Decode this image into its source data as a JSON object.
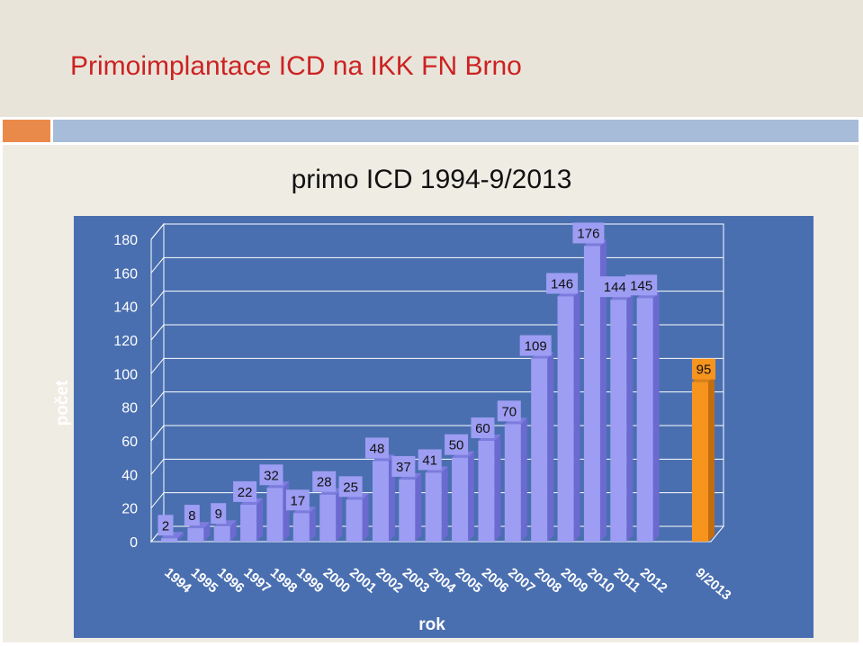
{
  "slide": {
    "title": "Primoimplantace ICD na IKK FN Brno",
    "colors": {
      "title": "#cc2222",
      "band_orange": "#ea8a4a",
      "band_blue": "#a7bcd8",
      "plot_bg": "#4a6fb0"
    }
  },
  "chart_data": {
    "type": "bar",
    "title": "primo ICD 1994-9/2013",
    "xlabel": "rok",
    "ylabel": "počet",
    "ylim": [
      0,
      180
    ],
    "yticks": [
      0,
      20,
      40,
      60,
      80,
      100,
      120,
      140,
      160,
      180
    ],
    "grid": true,
    "categories": [
      "1994",
      "1995",
      "1996",
      "1997",
      "1998",
      "1999",
      "2000",
      "2001",
      "2002",
      "2003",
      "2004",
      "2005",
      "2006",
      "2007",
      "2008",
      "2009",
      "2010",
      "2011",
      "2012",
      "9/2013"
    ],
    "values": [
      2,
      8,
      9,
      22,
      32,
      17,
      28,
      25,
      48,
      37,
      41,
      50,
      60,
      70,
      109,
      146,
      176,
      144,
      145,
      95
    ],
    "colors": {
      "bar": "#9d9df3",
      "highlight": "#f7941d"
    }
  }
}
